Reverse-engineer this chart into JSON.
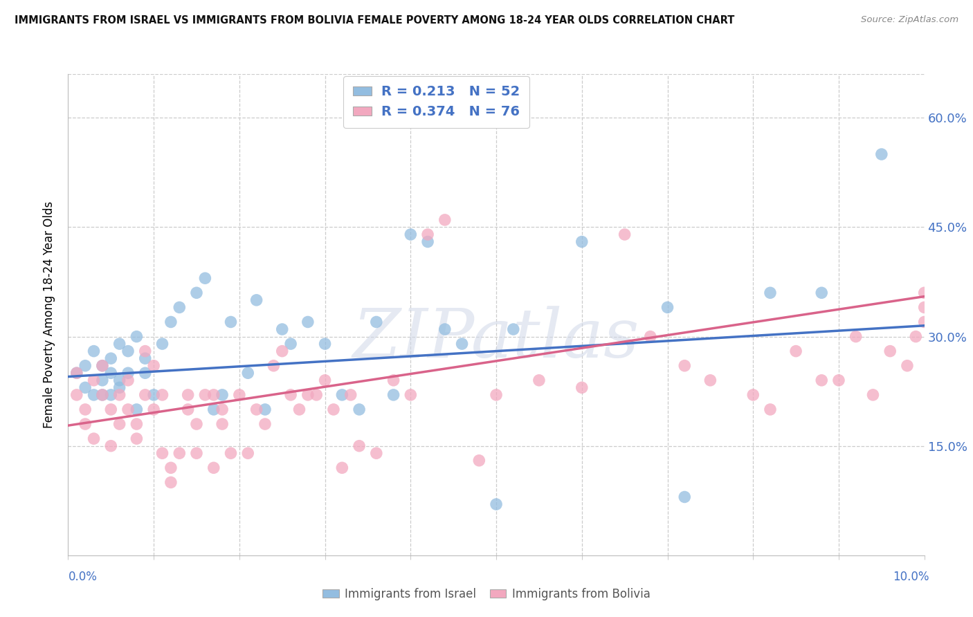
{
  "title": "IMMIGRANTS FROM ISRAEL VS IMMIGRANTS FROM BOLIVIA FEMALE POVERTY AMONG 18-24 YEAR OLDS CORRELATION CHART",
  "source": "Source: ZipAtlas.com",
  "ylabel": "Female Poverty Among 18-24 Year Olds",
  "yticks": [
    "15.0%",
    "30.0%",
    "45.0%",
    "60.0%"
  ],
  "ytick_vals": [
    0.15,
    0.3,
    0.45,
    0.6
  ],
  "ylim": [
    0.0,
    0.66
  ],
  "xlim": [
    0.0,
    0.1
  ],
  "legend_r1": "R = 0.213",
  "legend_n1": "N = 52",
  "legend_r2": "R = 0.374",
  "legend_n2": "N = 76",
  "color_israel": "#93BDE0",
  "color_bolivia": "#F2A8BF",
  "color_line_israel": "#4472C4",
  "color_line_bolivia": "#D9638A",
  "watermark": "ZIPatlas",
  "israel_x": [
    0.001,
    0.002,
    0.002,
    0.003,
    0.003,
    0.004,
    0.004,
    0.004,
    0.005,
    0.005,
    0.005,
    0.006,
    0.006,
    0.006,
    0.007,
    0.007,
    0.008,
    0.008,
    0.009,
    0.009,
    0.01,
    0.011,
    0.012,
    0.013,
    0.015,
    0.016,
    0.017,
    0.018,
    0.019,
    0.021,
    0.022,
    0.023,
    0.025,
    0.026,
    0.028,
    0.03,
    0.032,
    0.034,
    0.036,
    0.038,
    0.04,
    0.042,
    0.044,
    0.046,
    0.05,
    0.052,
    0.06,
    0.07,
    0.072,
    0.082,
    0.088,
    0.095
  ],
  "israel_y": [
    0.25,
    0.23,
    0.26,
    0.22,
    0.28,
    0.24,
    0.26,
    0.22,
    0.27,
    0.25,
    0.22,
    0.24,
    0.23,
    0.29,
    0.28,
    0.25,
    0.3,
    0.2,
    0.25,
    0.27,
    0.22,
    0.29,
    0.32,
    0.34,
    0.36,
    0.38,
    0.2,
    0.22,
    0.32,
    0.25,
    0.35,
    0.2,
    0.31,
    0.29,
    0.32,
    0.29,
    0.22,
    0.2,
    0.32,
    0.22,
    0.44,
    0.43,
    0.31,
    0.29,
    0.07,
    0.31,
    0.43,
    0.34,
    0.08,
    0.36,
    0.36,
    0.55
  ],
  "bolivia_x": [
    0.001,
    0.001,
    0.002,
    0.002,
    0.003,
    0.003,
    0.004,
    0.004,
    0.005,
    0.005,
    0.006,
    0.006,
    0.007,
    0.007,
    0.008,
    0.008,
    0.009,
    0.009,
    0.01,
    0.01,
    0.011,
    0.011,
    0.012,
    0.012,
    0.013,
    0.014,
    0.014,
    0.015,
    0.015,
    0.016,
    0.017,
    0.017,
    0.018,
    0.018,
    0.019,
    0.02,
    0.021,
    0.022,
    0.023,
    0.024,
    0.025,
    0.026,
    0.027,
    0.028,
    0.029,
    0.03,
    0.031,
    0.032,
    0.033,
    0.034,
    0.036,
    0.038,
    0.04,
    0.042,
    0.044,
    0.048,
    0.05,
    0.055,
    0.06,
    0.065,
    0.068,
    0.072,
    0.075,
    0.08,
    0.082,
    0.085,
    0.088,
    0.09,
    0.092,
    0.094,
    0.096,
    0.098,
    0.099,
    0.1,
    0.1,
    0.1
  ],
  "bolivia_y": [
    0.22,
    0.25,
    0.18,
    0.2,
    0.24,
    0.16,
    0.22,
    0.26,
    0.2,
    0.15,
    0.18,
    0.22,
    0.24,
    0.2,
    0.16,
    0.18,
    0.22,
    0.28,
    0.2,
    0.26,
    0.22,
    0.14,
    0.12,
    0.1,
    0.14,
    0.2,
    0.22,
    0.18,
    0.14,
    0.22,
    0.22,
    0.12,
    0.18,
    0.2,
    0.14,
    0.22,
    0.14,
    0.2,
    0.18,
    0.26,
    0.28,
    0.22,
    0.2,
    0.22,
    0.22,
    0.24,
    0.2,
    0.12,
    0.22,
    0.15,
    0.14,
    0.24,
    0.22,
    0.44,
    0.46,
    0.13,
    0.22,
    0.24,
    0.23,
    0.44,
    0.3,
    0.26,
    0.24,
    0.22,
    0.2,
    0.28,
    0.24,
    0.24,
    0.3,
    0.22,
    0.28,
    0.26,
    0.3,
    0.32,
    0.34,
    0.36
  ]
}
